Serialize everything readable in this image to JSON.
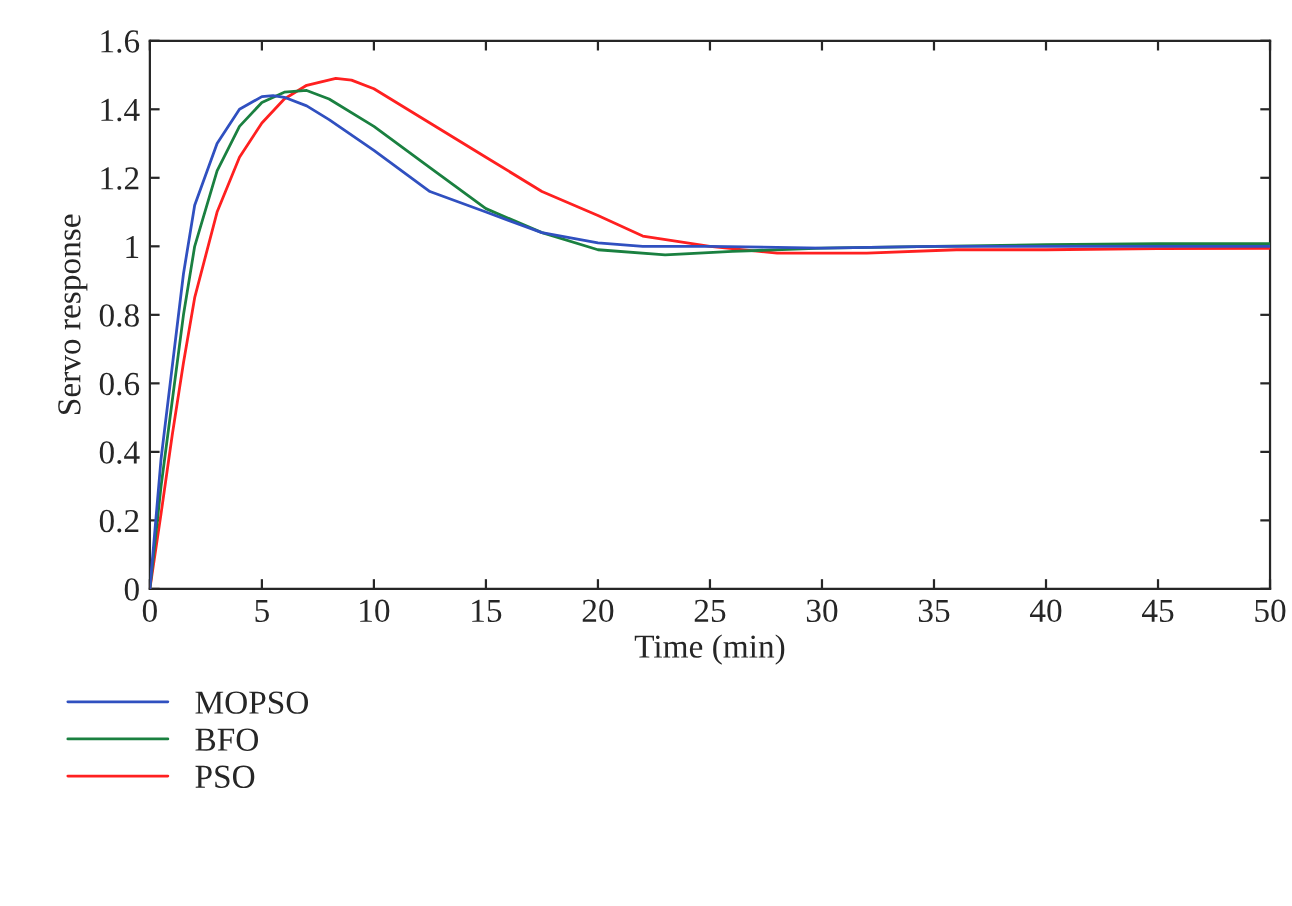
{
  "chart_data": {
    "type": "line",
    "xlabel": "Time (min)",
    "ylabel": "Servo response",
    "xlim": [
      0,
      50
    ],
    "ylim": [
      0,
      1.6
    ],
    "xticks": [
      0,
      5,
      10,
      15,
      20,
      25,
      30,
      35,
      40,
      45,
      50
    ],
    "yticks": [
      0,
      0.2,
      0.4,
      0.6,
      0.8,
      1,
      1.2,
      1.4,
      1.6
    ],
    "grid": false,
    "legend": "bottom left",
    "line_style": "solid",
    "marker": "none",
    "series": [
      {
        "name": "MOPSO",
        "color": "#3050c0",
        "x": [
          0,
          0.5,
          1,
          1.5,
          2,
          3,
          4,
          5,
          5.5,
          6,
          7,
          8,
          10,
          12.5,
          15,
          17.5,
          20,
          22,
          25,
          30,
          35,
          40,
          45,
          50
        ],
        "values": [
          0,
          0.38,
          0.65,
          0.92,
          1.12,
          1.3,
          1.4,
          1.437,
          1.44,
          1.435,
          1.41,
          1.37,
          1.28,
          1.16,
          1.1,
          1.04,
          1.01,
          1.0,
          1.0,
          0.995,
          1.0,
          1.0,
          1.0,
          1.0
        ]
      },
      {
        "name": "BFO",
        "color": "#1a8040",
        "x": [
          0,
          0.5,
          1,
          1.5,
          2,
          3,
          4,
          5,
          6,
          7,
          8,
          10,
          12.5,
          15,
          17.5,
          20,
          23,
          26,
          30,
          35,
          40,
          45,
          50
        ],
        "values": [
          0,
          0.3,
          0.55,
          0.8,
          1.0,
          1.22,
          1.35,
          1.42,
          1.45,
          1.455,
          1.43,
          1.35,
          1.23,
          1.11,
          1.04,
          0.99,
          0.975,
          0.985,
          0.995,
          1.0,
          1.005,
          1.008,
          1.008
        ]
      },
      {
        "name": "PSO",
        "color": "#ff2020",
        "x": [
          0,
          0.5,
          1,
          1.5,
          2,
          3,
          4,
          5,
          6,
          7,
          8.3,
          9,
          10,
          12.5,
          15,
          17.5,
          20,
          22,
          25,
          28,
          32,
          36,
          40,
          45,
          50
        ],
        "values": [
          0,
          0.22,
          0.45,
          0.66,
          0.85,
          1.1,
          1.26,
          1.36,
          1.43,
          1.47,
          1.49,
          1.485,
          1.46,
          1.36,
          1.26,
          1.16,
          1.09,
          1.03,
          1.0,
          0.98,
          0.98,
          0.99,
          0.99,
          0.993,
          0.994
        ]
      }
    ]
  }
}
